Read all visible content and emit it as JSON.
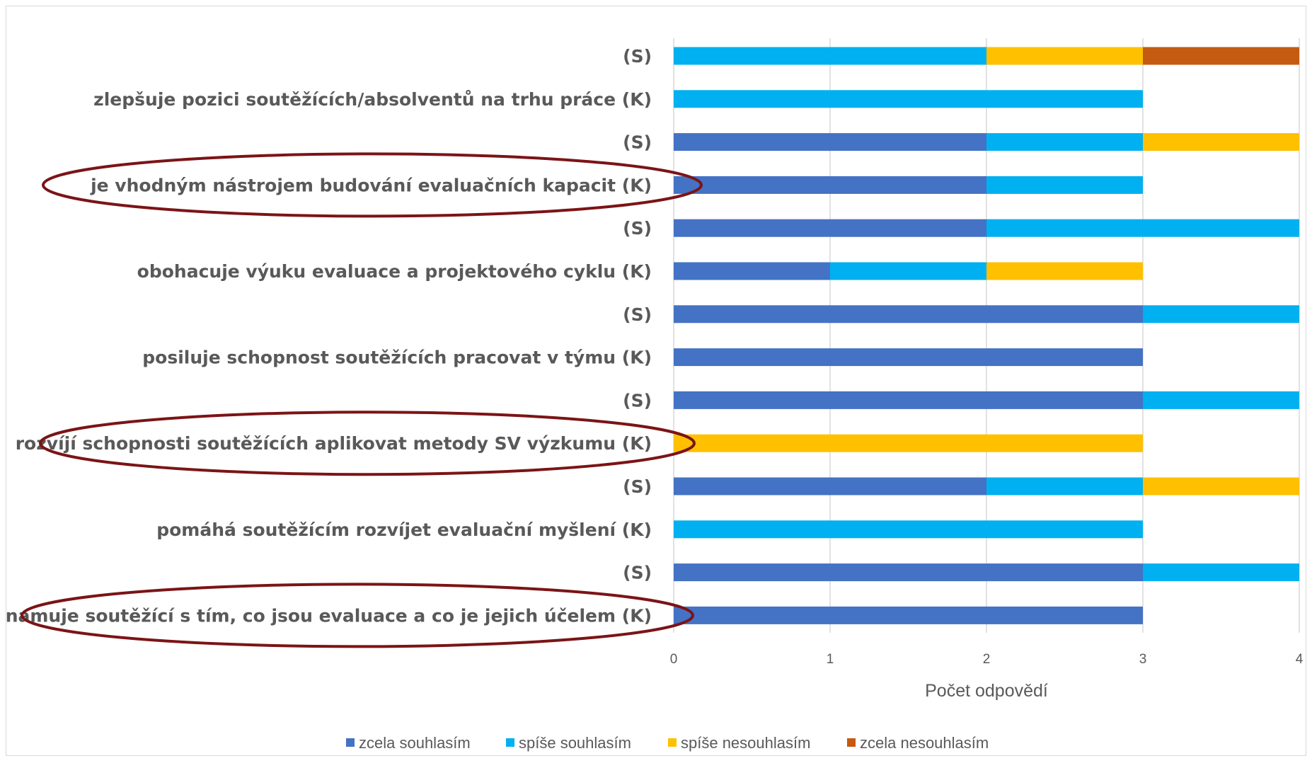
{
  "chart_data": {
    "type": "bar",
    "orientation": "horizontal",
    "stacked": true,
    "categories": [
      "(S)",
      "zlepšuje pozici soutěžících/absolventů na trhu práce (K)",
      "(S)",
      "je vhodným nástrojem budování evaluačních kapacit (K)",
      "(S)",
      "obohacuje výuku evaluace a projektového cyklu (K)",
      "(S)",
      "posiluje schopnost soutěžících pracovat v týmu (K)",
      "(S)",
      "rozvíjí schopnosti soutěžících aplikovat metody SV výzkumu (K)",
      "(S)",
      "pomáhá soutěžícím rozvíjet evaluační myšlení (K)",
      "(S)",
      "seznamuje soutěžící s tím, co jsou evaluace a co je jejich účelem (K)"
    ],
    "series": [
      {
        "name": "zcela souhlasím",
        "color": "#4472c4",
        "values": [
          0,
          0,
          2,
          2,
          2,
          1,
          3,
          3,
          3,
          0,
          2,
          0,
          3,
          3
        ]
      },
      {
        "name": "spíše souhlasím",
        "color": "#00b0f0",
        "values": [
          2,
          3,
          1,
          1,
          2,
          1,
          1,
          0,
          1,
          0,
          1,
          3,
          1,
          0
        ]
      },
      {
        "name": "spíše nesouhlasím",
        "color": "#ffc000",
        "values": [
          1,
          0,
          1,
          0,
          0,
          1,
          0,
          0,
          0,
          3,
          1,
          0,
          0,
          0
        ]
      },
      {
        "name": "zcela nesouhlasím",
        "color": "#c55a11",
        "values": [
          1,
          0,
          0,
          0,
          0,
          0,
          0,
          0,
          0,
          0,
          0,
          0,
          0,
          0
        ]
      }
    ],
    "xlabel": "Počet odpovědí",
    "ylabel": "",
    "xlim": [
      0,
      4
    ],
    "xticks": [
      "0",
      "1",
      "2",
      "3",
      "4"
    ],
    "grid": true,
    "legend_position": "bottom",
    "highlighted_categories": [
      3,
      9,
      13
    ],
    "highlight_color": "#7b1416"
  }
}
